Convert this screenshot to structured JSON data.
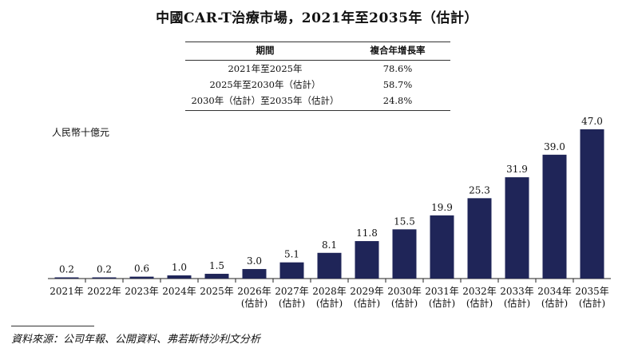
{
  "title": "中國CAR-T治療市場，2021年至2035年（估計）",
  "cagr_table": {
    "headers": [
      "期間",
      "複合年增長率"
    ],
    "rows": [
      {
        "period": "2021年至2025年",
        "rate": "78.6%"
      },
      {
        "period": "2025年至2030年（估計）",
        "rate": "58.7%"
      },
      {
        "period": "2030年（估計）至2035年（估計）",
        "rate": "24.8%"
      }
    ]
  },
  "source": "資料來源：公司年報、公開資料、弗若斯特沙利文分析",
  "colors": {
    "bar": "#1f2558"
  },
  "chart_data": {
    "type": "bar",
    "ylabel": "人民幣十億元",
    "categories": [
      [
        "2021年"
      ],
      [
        "2022年"
      ],
      [
        "2023年"
      ],
      [
        "2024年"
      ],
      [
        "2025年"
      ],
      [
        "2026年",
        "(估計)"
      ],
      [
        "2027年",
        "(估計)"
      ],
      [
        "2028年",
        "(估計)"
      ],
      [
        "2029年",
        "(估計)"
      ],
      [
        "2030年",
        "(估計)"
      ],
      [
        "2031年",
        "(估計)"
      ],
      [
        "2032年",
        "(估計)"
      ],
      [
        "2033年",
        "(估計)"
      ],
      [
        "2034年",
        "(估計)"
      ],
      [
        "2035年",
        "(估計)"
      ]
    ],
    "values": [
      0.2,
      0.2,
      0.6,
      1.0,
      1.5,
      3.0,
      5.1,
      8.1,
      11.8,
      15.5,
      19.9,
      25.3,
      31.9,
      39.0,
      47.0
    ],
    "value_labels": [
      "0.2",
      "0.2",
      "0.6",
      "1.0",
      "1.5",
      "3.0",
      "5.1",
      "8.1",
      "11.8",
      "15.5",
      "19.9",
      "25.3",
      "31.9",
      "39.0",
      "47.0"
    ],
    "ylim": [
      0,
      47.0
    ],
    "grid": false,
    "legend": "none"
  }
}
